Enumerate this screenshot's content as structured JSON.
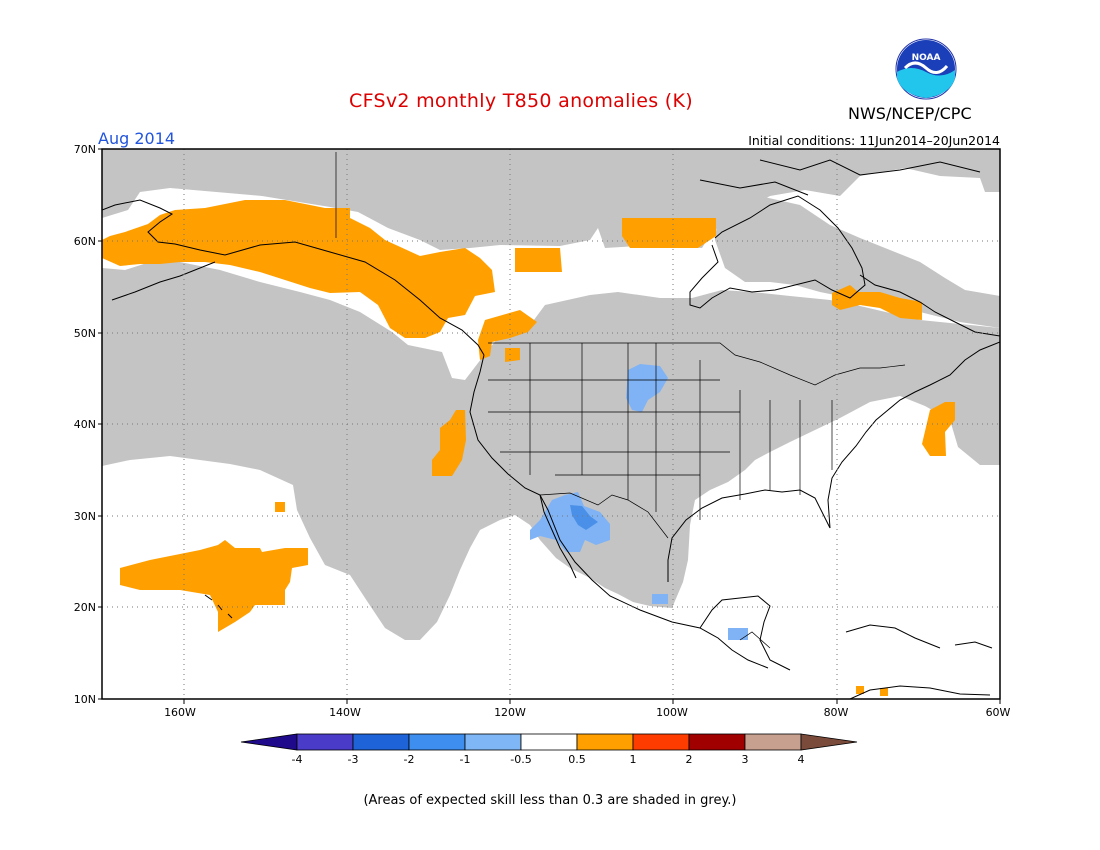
{
  "header": {
    "title": "CFSv2 monthly T850 anomalies (K)",
    "agency": "NWS/NCEP/CPC",
    "logo_text": "NOAA",
    "valid_month": "Aug 2014",
    "initial_conditions": "Initial conditions: 11Jun2014–20Jun2014"
  },
  "map": {
    "projection": "lat-lon",
    "lat_range": [
      10,
      70
    ],
    "lon_range": [
      -170,
      -60
    ],
    "lat_labels": [
      "70N",
      "60N",
      "50N",
      "40N",
      "30N",
      "20N",
      "10N"
    ],
    "lon_labels": [
      "160W",
      "140W",
      "120W",
      "100W",
      "80W",
      "60W"
    ],
    "grid": "dotted",
    "skill_mask_color": "#c4c4c4",
    "anomaly_colors": {
      "positive_0.5_1": "#ff9f00",
      "negative_0.5_1": "#7fb3f5",
      "negative_1_2": "#4a90e8"
    }
  },
  "colorbar": {
    "ticks": [
      "-4",
      "-3",
      "-2",
      "-1",
      "-0.5",
      "0.5",
      "1",
      "2",
      "3",
      "4"
    ],
    "colors": [
      "#1e0a8a",
      "#4a3cc8",
      "#1e64d8",
      "#3e8ef0",
      "#7fb6f5",
      "#ffffff",
      "#ff9f00",
      "#ff3c00",
      "#a00000",
      "#c8a090",
      "#7a4a3a"
    ]
  },
  "footnote": "(Areas of expected skill less than 0.3 are shaded in grey.)"
}
